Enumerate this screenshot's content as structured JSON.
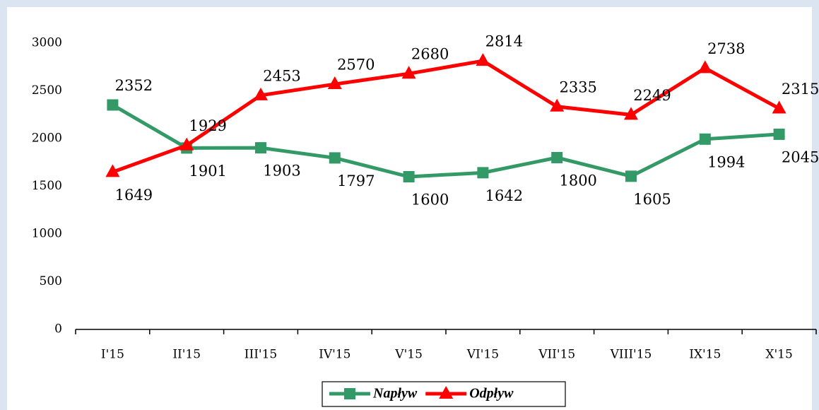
{
  "chart_data": {
    "type": "line",
    "categories": [
      "I'15",
      "II'15",
      "III'15",
      "IV'15",
      "V'15",
      "VI'15",
      "VII'15",
      "VIII'15",
      "IX'15",
      "X'15"
    ],
    "series": [
      {
        "name": "Napływ",
        "color": "#339966",
        "marker": "square",
        "values": [
          2352,
          1901,
          1903,
          1797,
          1600,
          1642,
          1800,
          1605,
          1994,
          2045
        ]
      },
      {
        "name": "Odpływ",
        "color": "#ff0000",
        "marker": "triangle",
        "values": [
          1649,
          1929,
          2453,
          2570,
          2680,
          2814,
          2335,
          2249,
          2738,
          2315
        ]
      }
    ],
    "ylim": [
      0,
      3000
    ],
    "yticks": [
      0,
      500,
      1000,
      1500,
      2000,
      2500,
      3000
    ],
    "grid": false,
    "legend": "bottom"
  }
}
